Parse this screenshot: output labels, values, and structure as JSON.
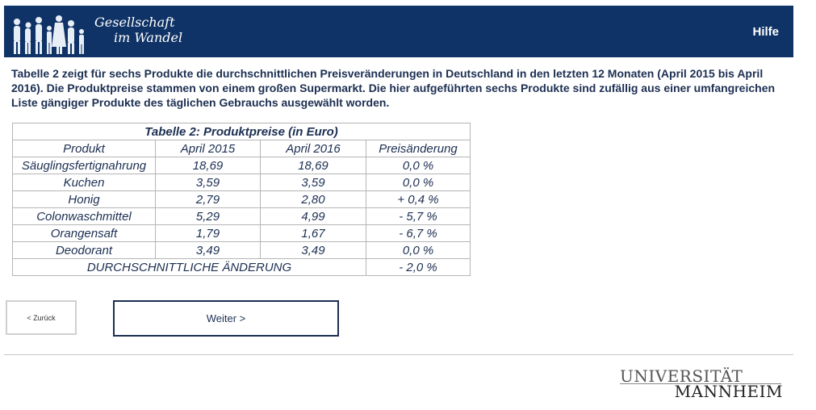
{
  "header": {
    "logo": {
      "line1": "Gesellschaft",
      "line2": "im Wandel",
      "icon": "people-silhouettes-icon"
    },
    "help_label": "Hilfe",
    "background_color": "#0f3366"
  },
  "intro_text": "Tabelle 2 zeigt für sechs Produkte die durchschnittlichen Preisveränderungen in Deutschland in den letzten 12 Monaten (April 2015 bis April 2016). Die Produktpreise stammen von einem großen Supermarkt. Die hier aufgeführten sechs Produkte sind zufällig aus einer umfangreichen Liste gängiger Produkte des täglichen Gebrauchs ausgewählt worden.",
  "table": {
    "caption": "Tabelle 2: Produktpreise (in Euro)",
    "headers": [
      "Produkt",
      "April 2015",
      "April 2016",
      "Preisänderung"
    ],
    "rows": [
      [
        "Säuglingsfertignahrung",
        "18,69",
        "18,69",
        "0,0 %"
      ],
      [
        "Kuchen",
        "3,59",
        "3,59",
        "0,0 %"
      ],
      [
        "Honig",
        "2,79",
        "2,80",
        "+ 0,4 %"
      ],
      [
        "Colonwaschmittel",
        "5,29",
        "4,99",
        "- 5,7 %"
      ],
      [
        "Orangensaft",
        "1,79",
        "1,67",
        "- 6,7 %"
      ],
      [
        "Deodorant",
        "3,49",
        "3,49",
        "0,0 %"
      ]
    ],
    "summary_label": "DURCHSCHNITTLICHE ÄNDERUNG",
    "summary_value": "- 2,0 %"
  },
  "nav": {
    "back_label": "< Zurück",
    "next_label": "Weiter >"
  },
  "footer": {
    "university_line1": "UNIVERSITÄT",
    "university_line2": "MANNHEIM"
  }
}
